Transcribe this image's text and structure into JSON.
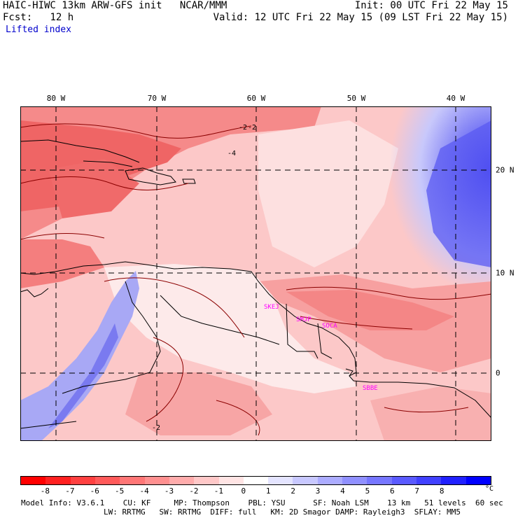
{
  "header": {
    "model": "HAIC-HIWC 13km ARW-GFS init",
    "org": "NCAR/MMM",
    "fcst_label": "Fcst:",
    "fcst_value": "12 h",
    "field": "Lifted index",
    "init": "Init: 00 UTC Fri 22 May 15",
    "valid": "Valid: 12 UTC Fri 22 May 15 (09 LST Fri 22 May 15)"
  },
  "map": {
    "longitude_labels": [
      "80 W",
      "70 W",
      "60 W",
      "50 W",
      "40 W"
    ],
    "latitude_labels": [
      "20 N",
      "10 N",
      "0"
    ],
    "station_labels": [
      "SKEJ",
      "SMJP",
      "SOCA",
      "SBBE"
    ],
    "contour_labels": [
      "-2",
      "-4",
      "-2",
      "-2"
    ],
    "colors": {
      "land_outline": "#000000",
      "contour": "#8b0000",
      "stations": "#ff00ff",
      "grid": "#000000"
    }
  },
  "colorbar": {
    "ticks": [
      "-8",
      "-7",
      "-6",
      "-5",
      "-4",
      "-3",
      "-2",
      "-1",
      "0",
      "1",
      "2",
      "3",
      "4",
      "5",
      "6",
      "7",
      "8"
    ],
    "unit": "°C",
    "colors": [
      "#ff0000",
      "#ff2020",
      "#ff4040",
      "#ff5a5a",
      "#ff7676",
      "#ff9090",
      "#ffacac",
      "#ffc8c8",
      "#ffe4e4",
      "#ffffff",
      "#e4e4ff",
      "#c8c8ff",
      "#acacff",
      "#9090ff",
      "#7676ff",
      "#5a5aff",
      "#4040ff",
      "#2020ff",
      "#0000ff"
    ]
  },
  "footer": {
    "line1": "Model Info: V3.6.1    CU: KF     MP: Thompson    PBL: YSU      SF: Noah LSM    13 km   51 levels  60 sec",
    "line2": "LW: RRTMG   SW: RRTMG  DIFF: full   KM: 2D Smagor DAMP: Rayleigh3  SFLAY: MM5"
  }
}
